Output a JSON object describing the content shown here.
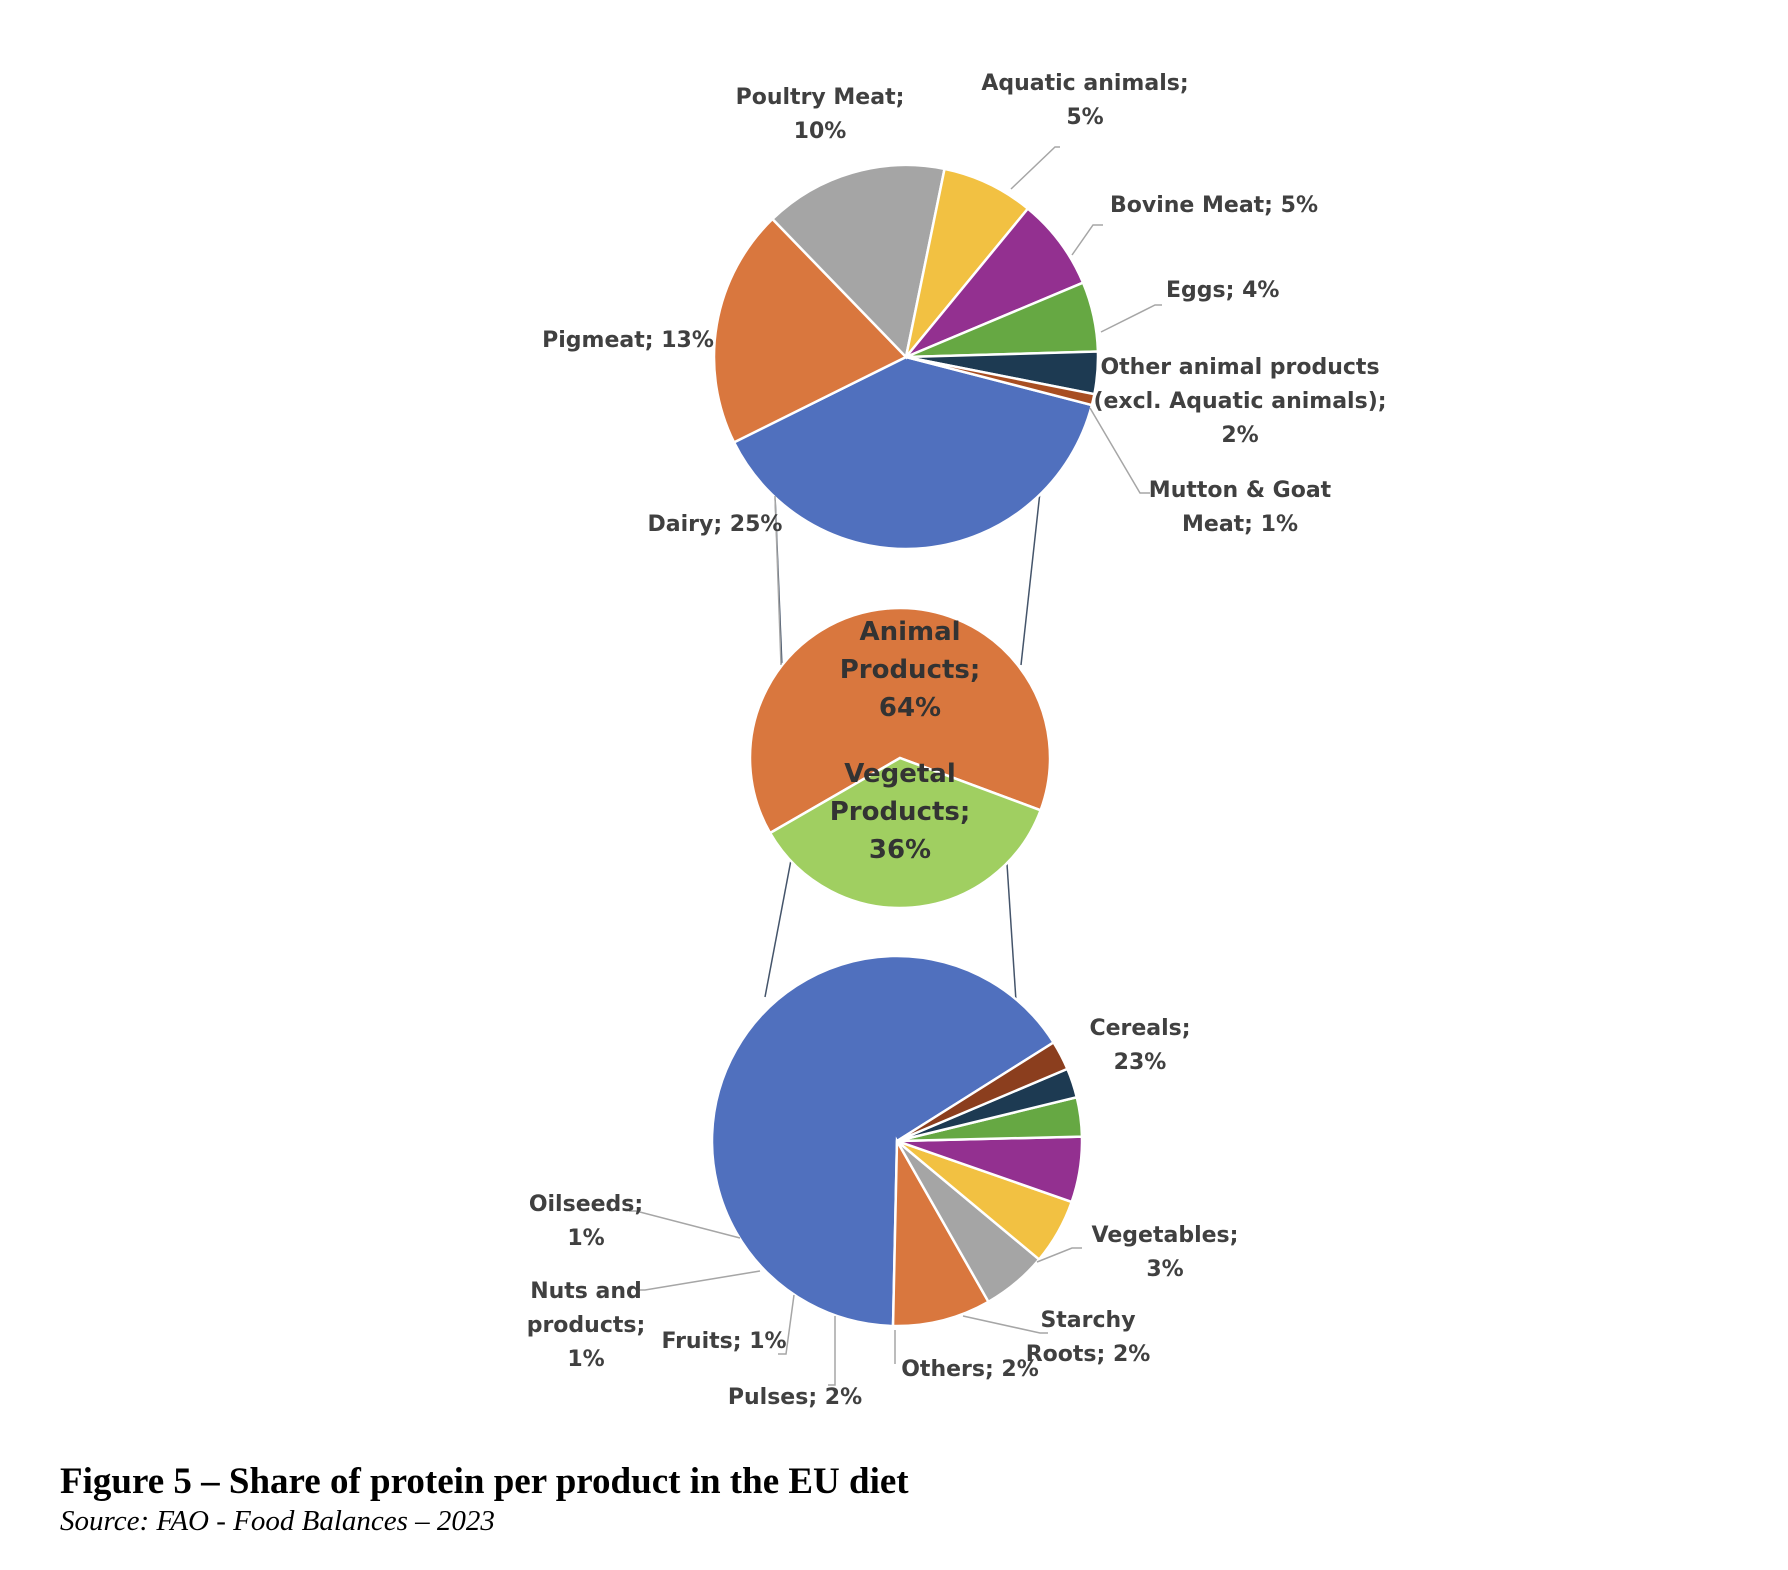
{
  "caption": {
    "title": "Figure 5 – Share of protein per product in the EU diet",
    "source": "Source: FAO - Food Balances – 2023"
  },
  "chart_data": [
    {
      "type": "pie",
      "role": "center",
      "slices": [
        {
          "name": "Animal Products",
          "label": [
            "Animal",
            "Products;",
            "64%"
          ],
          "value": 64,
          "color": "#D9773E"
        },
        {
          "name": "Vegetal Products",
          "label": [
            "Vegetal",
            "Products;",
            "36%"
          ],
          "value": 36,
          "color": "#A0CF61"
        }
      ]
    },
    {
      "type": "pie",
      "role": "animal-breakdown",
      "slices": [
        {
          "name": "Dairy",
          "label": [
            "Dairy; 25%"
          ],
          "value": 25,
          "color": "#5070BE"
        },
        {
          "name": "Pigmeat",
          "label": [
            "Pigmeat; 13%"
          ],
          "value": 13,
          "color": "#D9773E"
        },
        {
          "name": "Poultry Meat",
          "label": [
            "Poultry Meat;",
            "10%"
          ],
          "value": 10,
          "color": "#A5A5A5"
        },
        {
          "name": "Aquatic animals",
          "label": [
            "Aquatic animals;",
            "5%"
          ],
          "value": 5,
          "color": "#F2C142"
        },
        {
          "name": "Bovine Meat",
          "label": [
            "Bovine Meat; 5%"
          ],
          "value": 5,
          "color": "#933090"
        },
        {
          "name": "Eggs",
          "label": [
            "Eggs; 4%"
          ],
          "value": 3.8,
          "color": "#66A843"
        },
        {
          "name": "Other animal products (excl. Aquatic animals)",
          "label": [
            "Other animal products",
            "(excl. Aquatic animals);",
            "2%"
          ],
          "value": 2.3,
          "color": "#1D3A52"
        },
        {
          "name": "Mutton & Goat Meat",
          "label": [
            "Mutton & Goat",
            "Meat; 1%"
          ],
          "value": 0.6,
          "color": "#A84E22"
        }
      ]
    },
    {
      "type": "pie",
      "role": "vegetal-breakdown",
      "slices": [
        {
          "name": "Cereals",
          "label": [
            "Cereals;",
            "23%"
          ],
          "value": 23,
          "color": "#5070BE"
        },
        {
          "name": "Vegetables",
          "label": [
            "Vegetables;",
            "3%"
          ],
          "value": 3,
          "color": "#D9773E"
        },
        {
          "name": "Starchy Roots",
          "label": [
            "Starchy",
            "Roots; 2%"
          ],
          "value": 2,
          "color": "#A5A5A5"
        },
        {
          "name": "Others",
          "label": [
            "Others; 2%"
          ],
          "value": 2,
          "color": "#F2C142"
        },
        {
          "name": "Pulses",
          "label": [
            "Pulses; 2%"
          ],
          "value": 2,
          "color": "#933090"
        },
        {
          "name": "Fruits",
          "label": [
            "Fruits; 1%"
          ],
          "value": 1.2,
          "color": "#66A843"
        },
        {
          "name": "Nuts and products",
          "label": [
            "Nuts and",
            "products;",
            "1%"
          ],
          "value": 0.9,
          "color": "#1D3A52"
        },
        {
          "name": "Oilseeds",
          "label": [
            "Oilseeds;",
            "1%"
          ],
          "value": 0.9,
          "color": "#8B3E1E"
        }
      ]
    }
  ]
}
